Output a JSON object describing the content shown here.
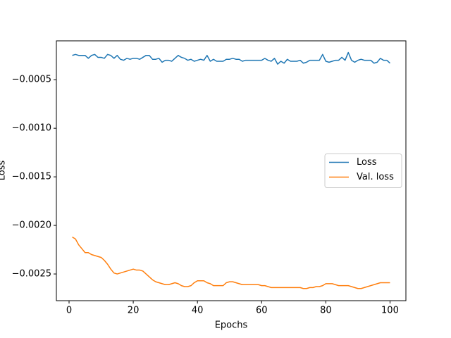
{
  "chart_data": {
    "type": "line",
    "xlabel": "Epochs",
    "ylabel": "Loss",
    "x": [
      1,
      2,
      3,
      4,
      5,
      6,
      7,
      8,
      9,
      10,
      11,
      12,
      13,
      14,
      15,
      16,
      17,
      18,
      19,
      20,
      21,
      22,
      23,
      24,
      25,
      26,
      27,
      28,
      29,
      30,
      31,
      32,
      33,
      34,
      35,
      36,
      37,
      38,
      39,
      40,
      41,
      42,
      43,
      44,
      45,
      46,
      47,
      48,
      49,
      50,
      51,
      52,
      53,
      54,
      55,
      56,
      57,
      58,
      59,
      60,
      61,
      62,
      63,
      64,
      65,
      66,
      67,
      68,
      69,
      70,
      71,
      72,
      73,
      74,
      75,
      76,
      77,
      78,
      79,
      80,
      81,
      82,
      83,
      84,
      85,
      86,
      87,
      88,
      89,
      90,
      91,
      92,
      93,
      94,
      95,
      96,
      97,
      98,
      99,
      100
    ],
    "series": [
      {
        "name": "Loss",
        "color": "#1f77b4",
        "values": [
          -0.00025,
          -0.00024,
          -0.00025,
          -0.00025,
          -0.00025,
          -0.00028,
          -0.00025,
          -0.00024,
          -0.00027,
          -0.00027,
          -0.00028,
          -0.00024,
          -0.00025,
          -0.00028,
          -0.00025,
          -0.00029,
          -0.0003,
          -0.00028,
          -0.00029,
          -0.00028,
          -0.00028,
          -0.00029,
          -0.00027,
          -0.00025,
          -0.00025,
          -0.00029,
          -0.00029,
          -0.00028,
          -0.00032,
          -0.0003,
          -0.0003,
          -0.00031,
          -0.00028,
          -0.00025,
          -0.00027,
          -0.00028,
          -0.0003,
          -0.00029,
          -0.00031,
          -0.0003,
          -0.00029,
          -0.0003,
          -0.00025,
          -0.00031,
          -0.00029,
          -0.00031,
          -0.00031,
          -0.00031,
          -0.00029,
          -0.00029,
          -0.00028,
          -0.00029,
          -0.00029,
          -0.00031,
          -0.0003,
          -0.0003,
          -0.0003,
          -0.0003,
          -0.0003,
          -0.0003,
          -0.00028,
          -0.0003,
          -0.00031,
          -0.00028,
          -0.00034,
          -0.00031,
          -0.00033,
          -0.00029,
          -0.00031,
          -0.00031,
          -0.00031,
          -0.0003,
          -0.00033,
          -0.00032,
          -0.0003,
          -0.0003,
          -0.0003,
          -0.0003,
          -0.00024,
          -0.00031,
          -0.00032,
          -0.00031,
          -0.0003,
          -0.0003,
          -0.00027,
          -0.0003,
          -0.00022,
          -0.0003,
          -0.00032,
          -0.0003,
          -0.00029,
          -0.0003,
          -0.0003,
          -0.0003,
          -0.00033,
          -0.00032,
          -0.00028,
          -0.0003,
          -0.0003,
          -0.00033
        ]
      },
      {
        "name": "Val. loss",
        "color": "#ff7f0e",
        "values": [
          -0.00212,
          -0.00214,
          -0.0022,
          -0.00224,
          -0.00228,
          -0.00228,
          -0.0023,
          -0.00231,
          -0.00232,
          -0.00233,
          -0.00236,
          -0.0024,
          -0.00245,
          -0.00249,
          -0.0025,
          -0.00249,
          -0.00248,
          -0.00247,
          -0.00246,
          -0.00245,
          -0.00246,
          -0.00246,
          -0.00247,
          -0.0025,
          -0.00253,
          -0.00256,
          -0.00258,
          -0.00259,
          -0.0026,
          -0.00261,
          -0.00261,
          -0.0026,
          -0.00259,
          -0.0026,
          -0.00262,
          -0.00263,
          -0.00263,
          -0.00262,
          -0.00259,
          -0.00257,
          -0.00257,
          -0.00257,
          -0.00259,
          -0.0026,
          -0.00262,
          -0.00262,
          -0.00262,
          -0.00262,
          -0.00259,
          -0.00258,
          -0.00258,
          -0.00259,
          -0.0026,
          -0.00261,
          -0.00261,
          -0.00261,
          -0.00261,
          -0.00261,
          -0.00261,
          -0.00262,
          -0.00262,
          -0.00263,
          -0.00264,
          -0.00264,
          -0.00264,
          -0.00264,
          -0.00264,
          -0.00264,
          -0.00264,
          -0.00264,
          -0.00264,
          -0.00264,
          -0.00265,
          -0.00265,
          -0.00264,
          -0.00264,
          -0.00263,
          -0.00263,
          -0.00262,
          -0.0026,
          -0.0026,
          -0.0026,
          -0.00261,
          -0.00262,
          -0.00262,
          -0.00262,
          -0.00262,
          -0.00263,
          -0.00264,
          -0.00265,
          -0.00265,
          -0.00264,
          -0.00263,
          -0.00262,
          -0.00261,
          -0.0026,
          -0.00259,
          -0.00259,
          -0.00259,
          -0.00259
        ]
      }
    ],
    "xlim": [
      -3.95,
      104.95
    ],
    "xticks": [
      0,
      20,
      40,
      60,
      80,
      100
    ],
    "ylim": [
      -0.002775,
      -0.0001
    ],
    "yticks": [
      {
        "value": -0.0025,
        "label": "−0.0025"
      },
      {
        "value": -0.002,
        "label": "−0.0020"
      },
      {
        "value": -0.0015,
        "label": "−0.0015"
      },
      {
        "value": -0.001,
        "label": "−0.0010"
      },
      {
        "value": -0.0005,
        "label": "−0.0005"
      }
    ],
    "grid": false,
    "legend": "center right"
  }
}
